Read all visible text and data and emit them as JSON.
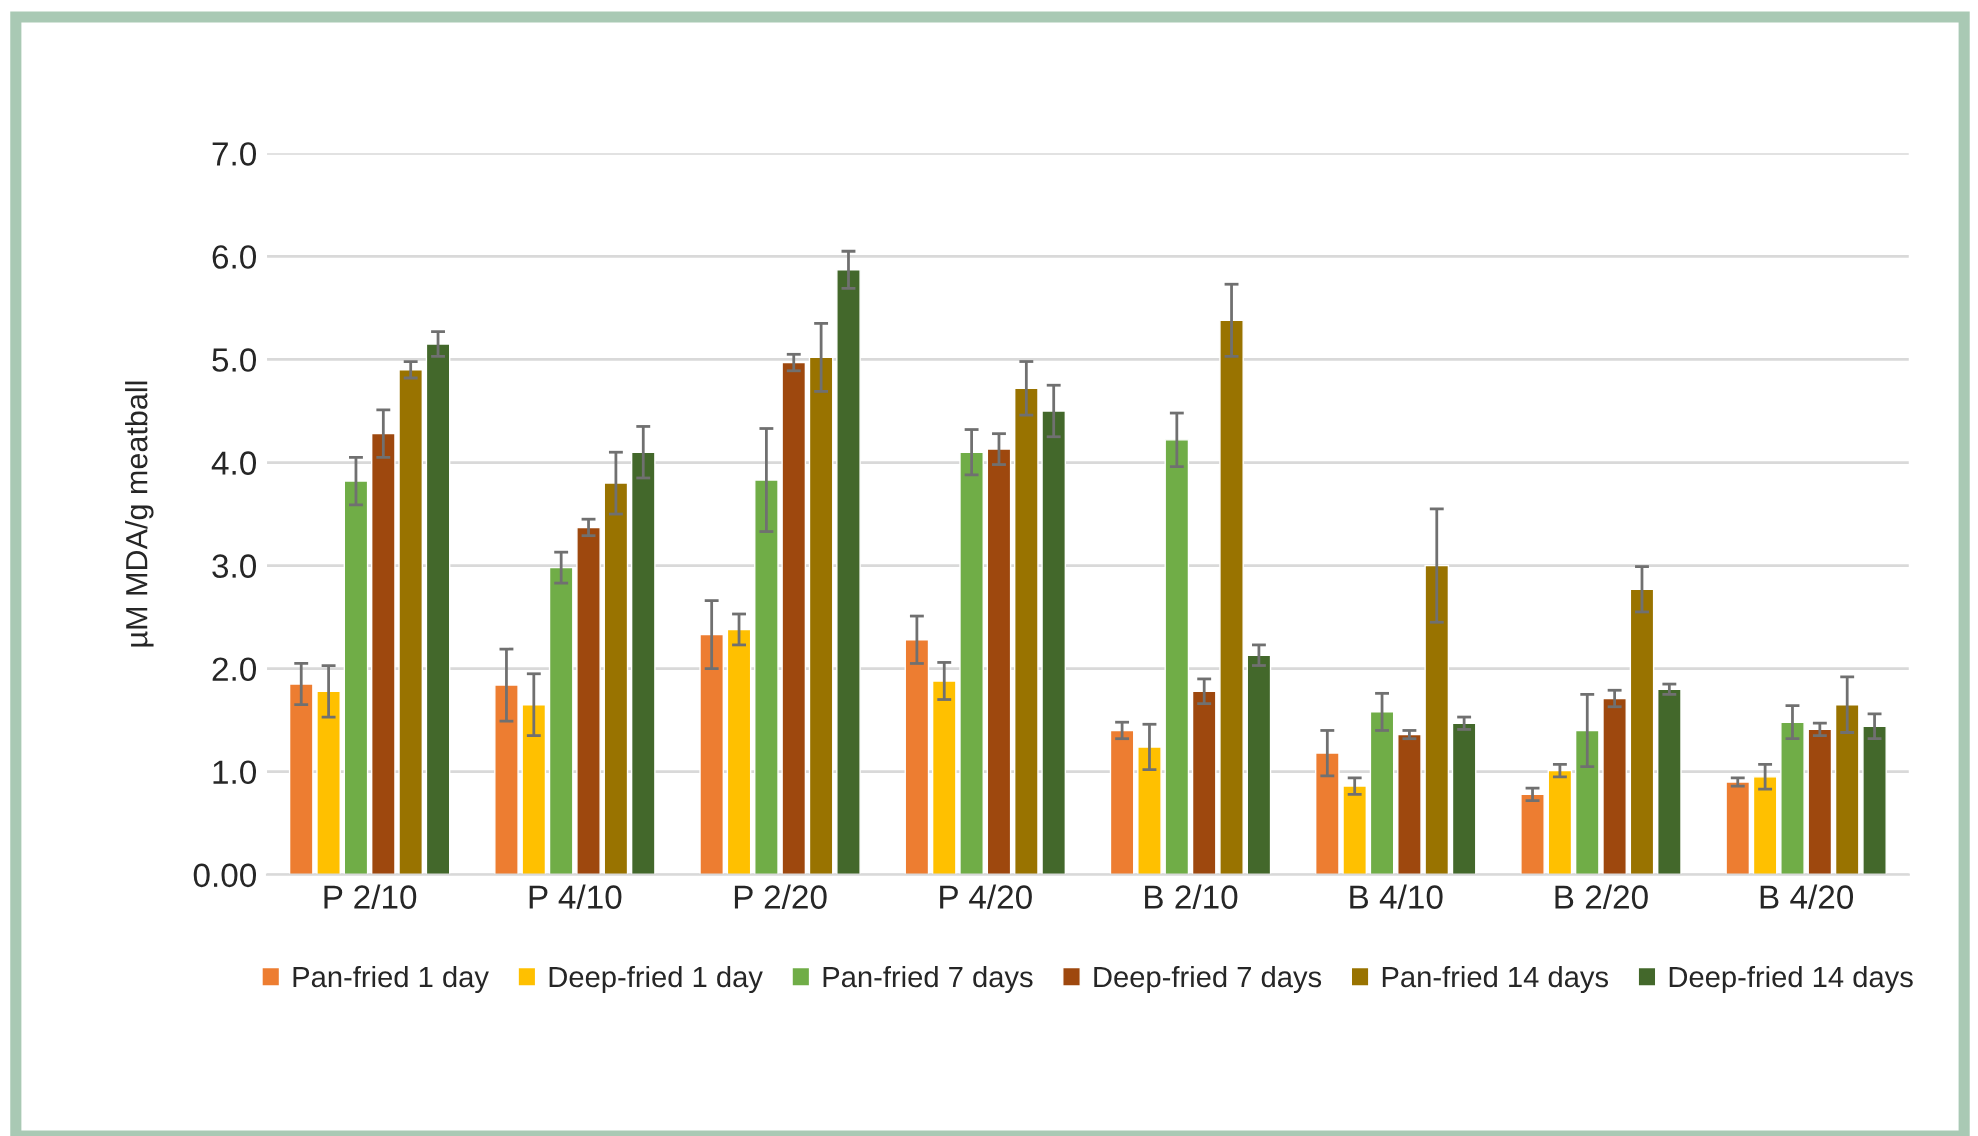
{
  "chart_data": {
    "type": "bar",
    "ylabel": "µM MDA/g meatball",
    "categories": [
      "P 2/10",
      "P 4/10",
      "P 2/20",
      "P 4/20",
      "B 2/10",
      "B 4/10",
      "B 2/20",
      "B 4/20"
    ],
    "series": [
      {
        "name": "Pan-fried 1 day",
        "color": "#ed7d31",
        "values": [
          1.85,
          1.84,
          2.33,
          2.28,
          1.4,
          1.18,
          0.78,
          0.9
        ],
        "errors": [
          0.2,
          0.35,
          0.33,
          0.23,
          0.08,
          0.22,
          0.06,
          0.04
        ]
      },
      {
        "name": "Deep-fried 1 day",
        "color": "#ffc000",
        "values": [
          1.78,
          1.65,
          2.38,
          1.88,
          1.24,
          0.86,
          1.01,
          0.95
        ],
        "errors": [
          0.25,
          0.3,
          0.15,
          0.18,
          0.22,
          0.08,
          0.06,
          0.12
        ]
      },
      {
        "name": "Pan-fried 7 days",
        "color": "#70ad47",
        "values": [
          3.82,
          2.98,
          3.83,
          4.1,
          4.22,
          1.58,
          1.4,
          1.48
        ],
        "errors": [
          0.23,
          0.15,
          0.5,
          0.22,
          0.26,
          0.18,
          0.35,
          0.16
        ]
      },
      {
        "name": "Deep-fried 7 days",
        "color": "#9e480e",
        "values": [
          4.28,
          3.37,
          4.97,
          4.13,
          1.78,
          1.36,
          1.71,
          1.41
        ],
        "errors": [
          0.23,
          0.08,
          0.08,
          0.15,
          0.12,
          0.04,
          0.08,
          0.06
        ]
      },
      {
        "name": "Pan-fried 14 days",
        "color": "#997300",
        "values": [
          4.9,
          3.8,
          5.02,
          4.72,
          5.38,
          3.0,
          2.77,
          1.65
        ],
        "errors": [
          0.08,
          0.3,
          0.33,
          0.26,
          0.35,
          0.55,
          0.22,
          0.27
        ]
      },
      {
        "name": "Deep-fried 14 days",
        "color": "#43682b",
        "values": [
          5.15,
          4.1,
          5.87,
          4.5,
          2.13,
          1.47,
          1.8,
          1.44
        ],
        "errors": [
          0.12,
          0.25,
          0.18,
          0.25,
          0.1,
          0.06,
          0.05,
          0.12
        ]
      }
    ],
    "ylim": [
      0,
      7
    ],
    "yticks": [
      {
        "value": 0,
        "label": "0.00"
      },
      {
        "value": 1,
        "label": "1.0"
      },
      {
        "value": 2,
        "label": "2.0"
      },
      {
        "value": 3,
        "label": "3.0"
      },
      {
        "value": 4,
        "label": "4.0"
      },
      {
        "value": 5,
        "label": "5.0"
      },
      {
        "value": 6,
        "label": "6.0"
      },
      {
        "value": 7,
        "label": "7.0"
      }
    ],
    "grid": "y",
    "legend": "bottom"
  }
}
